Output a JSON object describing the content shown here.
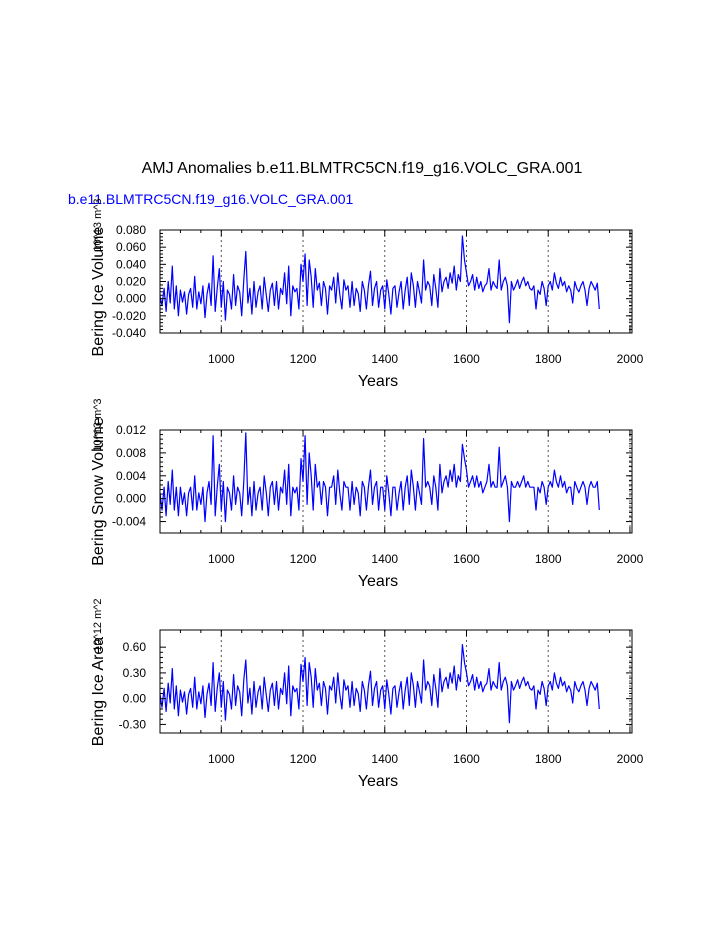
{
  "figure": {
    "title": "AMJ Anomalies b.e11.BLMTRC5CN.f19_g16.VOLC_GRA.001",
    "legend_label": "b.e11.BLMTRC5CN.f19_g16.VOLC_GRA.001",
    "line_color": "#0000ff",
    "grid_color": "#555555"
  },
  "chart_data": [
    {
      "type": "line",
      "title": "",
      "ylabel": "Bering Ice Volume",
      "yunits": "10^13 m^3",
      "xlabel": "Years",
      "xlim": [
        850,
        2005
      ],
      "ylim": [
        -0.04,
        0.08
      ],
      "xticks": [
        1000,
        1200,
        1400,
        1600,
        1800,
        2000
      ],
      "xtick_labels": [
        "1000",
        "1200",
        "1400",
        "1600",
        "1800",
        "2000"
      ],
      "yticks": [
        -0.04,
        -0.02,
        0.0,
        0.02,
        0.04,
        0.06,
        0.08
      ],
      "ytick_labels": [
        "-0.040",
        "-0.020",
        "0.000",
        "0.020",
        "0.040",
        "0.060",
        "0.080"
      ],
      "vlines": [
        1000,
        1200,
        1400,
        1600,
        1800,
        2000
      ],
      "series": [
        {
          "name": "b.e11.BLMTRC5CN.f19_g16.VOLC_GRA.001",
          "x_start": 850,
          "x_step": 5,
          "values": [
            0.003,
            -0.008,
            0.012,
            -0.015,
            0.02,
            -0.005,
            0.038,
            -0.012,
            0.015,
            -0.02,
            0.01,
            -0.004,
            0.008,
            -0.018,
            0.005,
            0.012,
            -0.01,
            0.026,
            -0.012,
            0.008,
            -0.006,
            0.015,
            -0.022,
            0.005,
            0.018,
            -0.008,
            0.05,
            -0.015,
            0.012,
            0.035,
            -0.01,
            0.02,
            -0.025,
            0.01,
            0.005,
            -0.012,
            0.028,
            -0.008,
            0.015,
            0.008,
            -0.02,
            0.022,
            0.055,
            -0.005,
            0.012,
            -0.018,
            0.02,
            -0.01,
            0.008,
            0.015,
            -0.012,
            0.025,
            0.004,
            -0.015,
            0.01,
            0.018,
            -0.008,
            0.02,
            -0.012,
            0.012,
            0.005,
            0.03,
            -0.006,
            0.038,
            -0.02,
            0.015,
            0.008,
            0.012,
            -0.012,
            0.04,
            0.02,
            0.052,
            -0.008,
            0.045,
            0.025,
            -0.01,
            0.035,
            0.01,
            0.018,
            -0.008,
            0.02,
            0.012,
            -0.018,
            0.015,
            0.01,
            0.025,
            -0.005,
            0.03,
            0.005,
            -0.012,
            0.022,
            0.01,
            0.015,
            -0.01,
            0.02,
            -0.008,
            0.012,
            0.006,
            -0.015,
            0.02,
            0.01,
            -0.012,
            0.015,
            0.032,
            -0.008,
            0.012,
            0.02,
            -0.01,
            0.01,
            0.015,
            -0.012,
            0.022,
            0.005,
            -0.018,
            0.012,
            0.015,
            -0.01,
            0.008,
            0.02,
            -0.012,
            0.01,
            0.025,
            -0.008,
            0.03,
            0.015,
            -0.01,
            0.02,
            0.008,
            -0.005,
            0.045,
            0.01,
            0.02,
            0.015,
            -0.008,
            0.028,
            0.012,
            -0.01,
            0.035,
            0.008,
            0.02,
            0.025,
            0.012,
            0.03,
            0.018,
            0.038,
            0.01,
            0.028,
            0.02,
            0.073,
            0.045,
            0.03,
            0.015,
            0.02,
            0.028,
            0.01,
            0.025,
            0.012,
            0.02,
            0.008,
            0.015,
            0.018,
            0.035,
            0.01,
            0.02,
            0.015,
            0.012,
            0.045,
            0.01,
            0.02,
            0.025,
            0.015,
            -0.028,
            0.02,
            0.01,
            0.015,
            0.022,
            0.012,
            0.02,
            0.025,
            0.015,
            0.02,
            0.012,
            0.01,
            0.015,
            -0.012,
            0.01,
            0.005,
            0.02,
            0.012,
            -0.008,
            0.015,
            0.02,
            0.01,
            0.03,
            0.018,
            0.012,
            0.025,
            0.015,
            0.02,
            0.008,
            0.015,
            0.01,
            -0.005,
            0.02,
            0.012,
            0.008,
            0.015,
            0.02,
            0.01,
            -0.008,
            0.012,
            0.02,
            0.015,
            0.01,
            0.018,
            -0.012
          ]
        }
      ]
    },
    {
      "type": "line",
      "title": "",
      "ylabel": "Bering Snow Volume",
      "yunits": "10^13 m^3",
      "xlabel": "Years",
      "xlim": [
        850,
        2005
      ],
      "ylim": [
        -0.006,
        0.012
      ],
      "xticks": [
        1000,
        1200,
        1400,
        1600,
        1800,
        2000
      ],
      "xtick_labels": [
        "1000",
        "1200",
        "1400",
        "1600",
        "1800",
        "2000"
      ],
      "yticks": [
        -0.004,
        0.0,
        0.004,
        0.008,
        0.012
      ],
      "ytick_labels": [
        "-0.004",
        "0.000",
        "0.004",
        "0.008",
        "0.012"
      ],
      "vlines": [
        1000,
        1200,
        1400,
        1600,
        1800,
        2000
      ],
      "series": [
        {
          "name": "b.e11.BLMTRC5CN.f19_g16.VOLC_GRA.001",
          "x_start": 850,
          "x_step": 5,
          "values": [
            0.001,
            -0.002,
            0.002,
            -0.003,
            0.003,
            -0.001,
            0.005,
            -0.002,
            0.002,
            -0.003,
            0.002,
            -0.001,
            0.001,
            -0.003,
            0.001,
            0.002,
            -0.002,
            0.004,
            -0.002,
            0.001,
            -0.001,
            0.002,
            -0.004,
            0.001,
            0.003,
            -0.001,
            0.011,
            -0.003,
            0.002,
            0.006,
            -0.002,
            0.003,
            -0.004,
            0.002,
            0.001,
            -0.002,
            0.004,
            -0.001,
            0.002,
            0.001,
            -0.003,
            0.003,
            0.0115,
            -0.001,
            0.002,
            -0.003,
            0.003,
            -0.002,
            0.001,
            0.002,
            -0.002,
            0.004,
            0.001,
            -0.003,
            0.002,
            0.003,
            -0.001,
            0.003,
            -0.002,
            0.002,
            0.001,
            0.005,
            -0.001,
            0.006,
            -0.003,
            0.002,
            0.001,
            0.002,
            -0.002,
            0.007,
            0.003,
            0.011,
            -0.001,
            0.008,
            0.004,
            -0.002,
            0.006,
            0.002,
            0.003,
            -0.001,
            0.003,
            0.002,
            -0.003,
            0.002,
            0.002,
            0.004,
            -0.001,
            0.005,
            0.001,
            -0.002,
            0.003,
            0.002,
            0.002,
            -0.002,
            0.003,
            -0.001,
            0.002,
            0.001,
            -0.003,
            0.003,
            0.002,
            -0.002,
            0.002,
            0.005,
            -0.001,
            0.002,
            0.003,
            -0.002,
            0.002,
            0.002,
            -0.002,
            0.004,
            0.001,
            -0.003,
            0.002,
            0.002,
            -0.002,
            0.001,
            0.003,
            -0.002,
            0.002,
            0.004,
            -0.001,
            0.005,
            0.002,
            -0.002,
            0.003,
            0.001,
            -0.001,
            0.0105,
            0.002,
            0.003,
            0.002,
            -0.001,
            0.004,
            0.002,
            -0.002,
            0.006,
            0.001,
            0.003,
            0.004,
            0.002,
            0.005,
            0.003,
            0.006,
            0.002,
            0.004,
            0.003,
            0.0095,
            0.007,
            0.005,
            0.002,
            0.003,
            0.004,
            0.002,
            0.004,
            0.002,
            0.003,
            0.001,
            0.002,
            0.003,
            0.006,
            0.002,
            0.003,
            0.002,
            0.002,
            0.009,
            0.002,
            0.003,
            0.004,
            0.002,
            -0.004,
            0.003,
            0.002,
            0.002,
            0.003,
            0.002,
            0.003,
            0.004,
            0.002,
            0.003,
            0.002,
            0.002,
            0.002,
            -0.002,
            0.002,
            0.001,
            0.003,
            0.002,
            -0.001,
            0.002,
            0.003,
            0.002,
            0.005,
            0.003,
            0.002,
            0.004,
            0.002,
            0.003,
            0.001,
            0.002,
            0.002,
            -0.001,
            0.003,
            0.002,
            0.001,
            0.002,
            0.003,
            0.002,
            -0.001,
            0.002,
            0.003,
            0.002,
            0.002,
            0.003,
            -0.002
          ]
        }
      ]
    },
    {
      "type": "line",
      "title": "",
      "ylabel": "Bering Ice Area",
      "yunits": "10^12 m^2",
      "xlabel": "Years",
      "xlim": [
        850,
        2005
      ],
      "ylim": [
        -0.4,
        0.8
      ],
      "xticks": [
        1000,
        1200,
        1400,
        1600,
        1800,
        2000
      ],
      "xtick_labels": [
        "1000",
        "1200",
        "1400",
        "1600",
        "1800",
        "2000"
      ],
      "yticks": [
        -0.3,
        0.0,
        0.3,
        0.6
      ],
      "ytick_labels": [
        "-0.30",
        "0.00",
        "0.30",
        "0.60"
      ],
      "vlines": [
        1000,
        1200,
        1400,
        1600,
        1800,
        2000
      ],
      "series": [
        {
          "name": "b.e11.BLMTRC5CN.f19_g16.VOLC_GRA.001",
          "x_start": 850,
          "x_step": 5,
          "values": [
            0.05,
            -0.1,
            0.12,
            -0.15,
            0.18,
            -0.05,
            0.35,
            -0.12,
            0.15,
            -0.2,
            0.1,
            -0.04,
            0.08,
            -0.18,
            0.05,
            0.12,
            -0.1,
            0.25,
            -0.12,
            0.08,
            -0.06,
            0.15,
            -0.22,
            0.05,
            0.18,
            -0.08,
            0.42,
            -0.15,
            0.12,
            0.3,
            -0.1,
            0.2,
            -0.25,
            0.1,
            0.05,
            -0.12,
            0.28,
            -0.08,
            0.15,
            0.08,
            -0.2,
            0.22,
            0.45,
            -0.05,
            0.12,
            -0.18,
            0.2,
            -0.1,
            0.08,
            0.15,
            -0.12,
            0.25,
            0.04,
            -0.15,
            0.1,
            0.18,
            -0.08,
            0.2,
            -0.12,
            0.12,
            0.05,
            0.3,
            -0.06,
            0.38,
            -0.2,
            0.15,
            0.08,
            0.12,
            -0.12,
            0.4,
            0.2,
            0.48,
            -0.08,
            0.42,
            0.25,
            -0.1,
            0.35,
            0.1,
            0.18,
            -0.08,
            0.2,
            0.12,
            -0.18,
            0.15,
            0.1,
            0.25,
            -0.05,
            0.3,
            0.05,
            -0.12,
            0.22,
            0.1,
            0.15,
            -0.1,
            0.2,
            -0.08,
            0.12,
            0.06,
            -0.15,
            0.2,
            0.1,
            -0.12,
            0.15,
            0.32,
            -0.08,
            0.12,
            0.2,
            -0.1,
            0.1,
            0.15,
            -0.12,
            0.22,
            0.05,
            -0.18,
            0.12,
            0.15,
            -0.1,
            0.08,
            0.2,
            -0.12,
            0.1,
            0.25,
            -0.08,
            0.3,
            0.15,
            -0.1,
            0.2,
            0.08,
            -0.05,
            0.45,
            0.1,
            0.2,
            0.15,
            -0.08,
            0.28,
            0.12,
            -0.1,
            0.35,
            0.08,
            0.2,
            0.25,
            0.12,
            0.3,
            0.18,
            0.38,
            0.1,
            0.28,
            0.2,
            0.63,
            0.42,
            0.3,
            0.15,
            0.2,
            0.28,
            0.1,
            0.25,
            0.12,
            0.2,
            0.08,
            0.15,
            0.18,
            0.35,
            0.1,
            0.2,
            0.15,
            0.12,
            0.42,
            0.1,
            0.2,
            0.25,
            0.15,
            -0.28,
            0.2,
            0.1,
            0.15,
            0.22,
            0.12,
            0.2,
            0.25,
            0.15,
            0.2,
            0.12,
            0.1,
            0.15,
            -0.12,
            0.1,
            0.05,
            0.2,
            0.12,
            -0.08,
            0.15,
            0.2,
            0.1,
            0.3,
            0.18,
            0.12,
            0.25,
            0.15,
            0.2,
            0.08,
            0.15,
            0.1,
            -0.05,
            0.2,
            0.12,
            0.08,
            0.15,
            0.2,
            0.1,
            -0.08,
            0.12,
            0.2,
            0.15,
            0.1,
            0.18,
            -0.12
          ]
        }
      ]
    }
  ]
}
